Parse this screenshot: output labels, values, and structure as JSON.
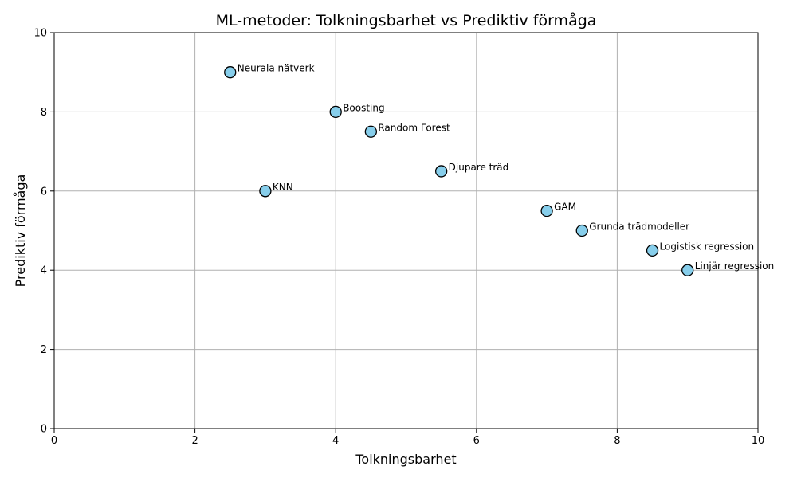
{
  "chart_data": {
    "type": "scatter",
    "title": "ML-metoder: Tolkningsbarhet vs Prediktiv förmåga",
    "xlabel": "Tolkningsbarhet",
    "ylabel": "Prediktiv förmåga",
    "xlim": [
      0,
      10
    ],
    "ylim": [
      0,
      10
    ],
    "xticks": [
      0,
      2,
      4,
      6,
      8,
      10
    ],
    "yticks": [
      0,
      2,
      4,
      6,
      8,
      10
    ],
    "grid": true,
    "marker_color": "#87ceeb",
    "points": [
      {
        "label": "Linjär regression",
        "x": 9.0,
        "y": 4.0
      },
      {
        "label": "Logistisk regression",
        "x": 8.5,
        "y": 4.5
      },
      {
        "label": "Grunda trädmodeller",
        "x": 7.5,
        "y": 5.0
      },
      {
        "label": "GAM",
        "x": 7.0,
        "y": 5.5
      },
      {
        "label": "Djupare träd",
        "x": 5.5,
        "y": 6.5
      },
      {
        "label": "Random Forest",
        "x": 4.5,
        "y": 7.5
      },
      {
        "label": "Boosting",
        "x": 4.0,
        "y": 8.0
      },
      {
        "label": "Neurala nätverk",
        "x": 2.5,
        "y": 9.0
      },
      {
        "label": "KNN",
        "x": 3.0,
        "y": 6.0
      }
    ]
  }
}
